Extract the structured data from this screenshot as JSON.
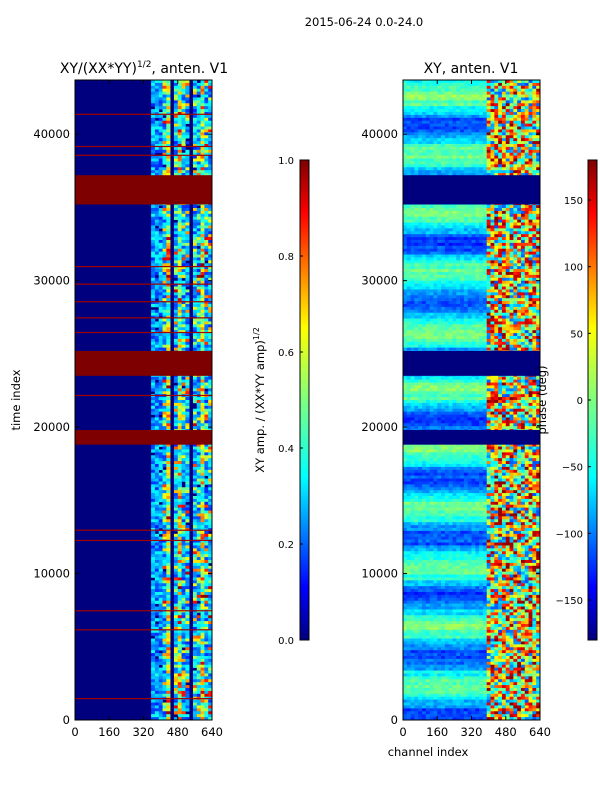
{
  "figure": {
    "suptitle": "2015-06-24 0.0-24.0"
  },
  "chart_data": [
    {
      "type": "heatmap",
      "title_prefix": "XY/(XX*YY)",
      "title_sup": "1/2",
      "title_suffix": ", anten. V1",
      "xlabel": "",
      "ylabel": "time index",
      "xlim": [
        0,
        640
      ],
      "ylim": [
        0,
        43700
      ],
      "xticks": [
        0,
        160,
        320,
        480,
        640
      ],
      "yticks": [
        0,
        10000,
        20000,
        30000,
        40000
      ],
      "colorbar": {
        "label": "XY amp. / (XX*YY amp)",
        "label_sup": "1/2",
        "range": [
          0.0,
          1.0
        ],
        "ticks": [
          "0.0",
          "0.2",
          "0.4",
          "0.6",
          "0.8",
          "1.0"
        ],
        "colormap": "jet"
      },
      "saturated_bands": [
        [
          35200,
          37200
        ],
        [
          23500,
          25200
        ],
        [
          18800,
          19800
        ]
      ],
      "saturated_lines": [
        41400,
        39200,
        38600,
        31000,
        29800,
        28600,
        27500,
        26500,
        22200,
        13000,
        12300,
        7500,
        6200,
        1500
      ]
    },
    {
      "type": "heatmap",
      "title": "XY, anten. V1",
      "xlabel": "channel index",
      "ylabel": "",
      "xlim": [
        0,
        640
      ],
      "ylim": [
        0,
        43700
      ],
      "xticks": [
        0,
        160,
        320,
        480,
        640
      ],
      "yticks": [
        0,
        10000,
        20000,
        30000,
        40000
      ],
      "colorbar": {
        "label": "phase (deg)",
        "range": [
          -180,
          180
        ],
        "ticks": [
          "−150",
          "−100",
          "−50",
          "0",
          "50",
          "100",
          "150"
        ],
        "colormap": "jet"
      },
      "flagged_bands": [
        [
          35200,
          37200
        ],
        [
          23500,
          25200
        ],
        [
          18800,
          19800
        ]
      ]
    }
  ]
}
